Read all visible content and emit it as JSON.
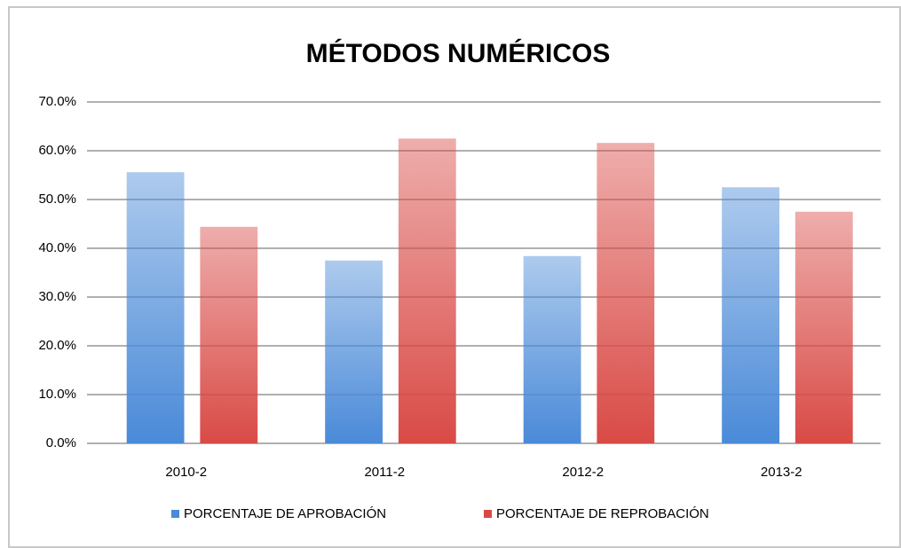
{
  "chart_data": {
    "type": "bar",
    "title": "MÉTODOS NUMÉRICOS",
    "categories": [
      "2010-2",
      "2011-2",
      "2012-2",
      "2013-2"
    ],
    "series": [
      {
        "name": "PORCENTAJE DE APROBACIÓN",
        "color": "#4a8ad8",
        "values": [
          55.6,
          37.5,
          38.4,
          52.5
        ]
      },
      {
        "name": "PORCENTAJE DE REPROBACIÓN",
        "color": "#d94a46",
        "values": [
          44.4,
          62.5,
          61.6,
          47.5
        ]
      }
    ],
    "ylim": [
      0,
      70
    ],
    "yticks": [
      {
        "value": 0,
        "label": "0.0%"
      },
      {
        "value": 10,
        "label": "10.0%"
      },
      {
        "value": 20,
        "label": "20.0%"
      },
      {
        "value": 30,
        "label": "30.0%"
      },
      {
        "value": 40,
        "label": "40.0%"
      },
      {
        "value": 50,
        "label": "50.0%"
      },
      {
        "value": 60,
        "label": "60.0%"
      },
      {
        "value": 70,
        "label": "70.0%"
      }
    ],
    "grid": true,
    "legend": "bottom"
  }
}
